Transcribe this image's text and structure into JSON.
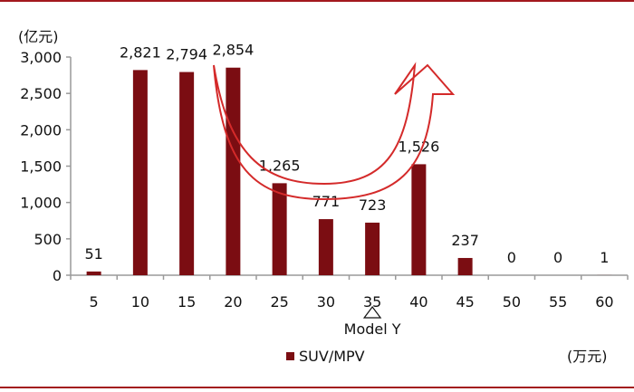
{
  "chart_data": {
    "type": "bar",
    "categories": [
      "5",
      "10",
      "15",
      "20",
      "25",
      "30",
      "35",
      "40",
      "45",
      "50",
      "55",
      "60"
    ],
    "series": [
      {
        "name": "SUV/MPV",
        "values": [
          51,
          2821,
          2794,
          2854,
          1265,
          771,
          723,
          1526,
          237,
          0,
          0,
          1
        ],
        "labels": [
          "51",
          "2,821",
          "2,794",
          "2,854",
          "1,265",
          "771",
          "723",
          "1,526",
          "237",
          "0",
          "0",
          "1"
        ]
      }
    ],
    "ylim": [
      0,
      3000
    ],
    "yticks": [
      0,
      500,
      1000,
      1500,
      2000,
      2500,
      3000
    ],
    "ytick_labels": [
      "0",
      "500",
      "1,000",
      "1,500",
      "2,000",
      "2,500",
      "3,000"
    ],
    "ylabel": "(亿元)",
    "xlabel": "(万元)",
    "annotations": [
      {
        "text": "Model Y",
        "category": "35"
      }
    ],
    "grid": false,
    "legend": "bottom-left"
  },
  "colors": {
    "bar": "#7b0d12",
    "border": "#a3191e",
    "arrow": "#d42a2a",
    "axis": "#9a9a9a"
  }
}
